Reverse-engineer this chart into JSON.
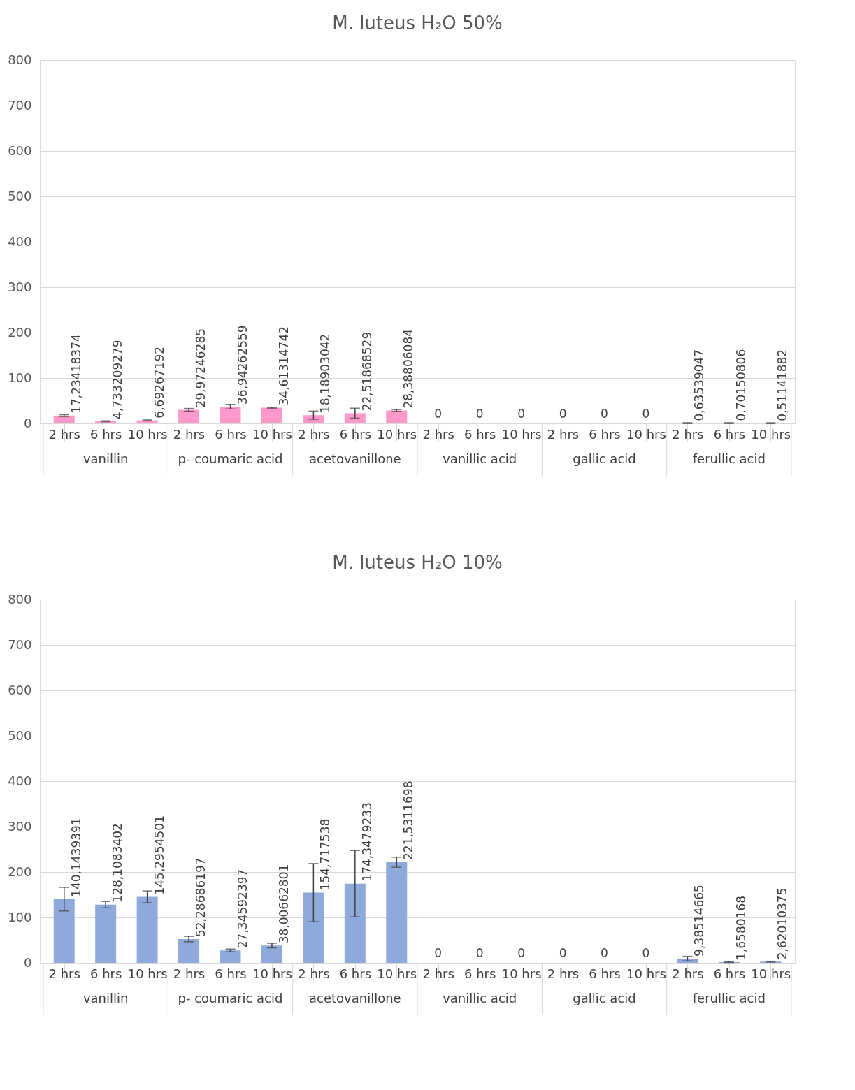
{
  "chart_data": [
    {
      "type": "bar",
      "title": "M. luteus H₂O 50%",
      "categories": [
        "2 hrs",
        "6 hrs",
        "10 hrs",
        "2 hrs",
        "6 hrs",
        "10 hrs",
        "2 hrs",
        "6 hrs",
        "10 hrs",
        "2 hrs",
        "6 hrs",
        "10 hrs",
        "2 hrs",
        "6 hrs",
        "10 hrs",
        "2 hrs",
        "6 hrs",
        "10 hrs"
      ],
      "annotations": [
        "vanillin",
        "p- coumaric acid",
        "acetovanillone",
        "vanillic acid",
        "gallic acid",
        "ferullic acid"
      ],
      "series": [
        {
          "color": "#ff99cc",
          "values": [
            17.23418374,
            4.733209279,
            6.69267192,
            29.97246285,
            36.94262559,
            34.61314742,
            18.18903042,
            22.51868529,
            28.38806084,
            0,
            0,
            0,
            0,
            0,
            0,
            0.63539047,
            0.70150806,
            0.51141882
          ],
          "errors": [
            2,
            1,
            1,
            3,
            5,
            1,
            9,
            11,
            2,
            null,
            null,
            null,
            null,
            null,
            null,
            1,
            1,
            1
          ],
          "value_labels": [
            "17,23418374",
            "4,733209279",
            "6,69267192",
            "29,97246285",
            "36,94262559",
            "34,61314742",
            "18,18903042",
            "22,51868529",
            "28,38806084",
            "0",
            "0",
            "0",
            "0",
            "0",
            "0",
            "0,63539047",
            "0,70150806",
            "0,51141882"
          ]
        }
      ],
      "ylim": [
        0,
        800
      ],
      "yticks": [
        0,
        100,
        200,
        300,
        400,
        500,
        600,
        700,
        800
      ],
      "grid": "y"
    },
    {
      "type": "bar",
      "title": "M. luteus H₂O 10%",
      "categories": [
        "2 hrs",
        "6 hrs",
        "10 hrs",
        "2 hrs",
        "6 hrs",
        "10 hrs",
        "2 hrs",
        "6 hrs",
        "10 hrs",
        "2 hrs",
        "6 hrs",
        "10 hrs",
        "2 hrs",
        "6 hrs",
        "10 hrs",
        "2 hrs",
        "6 hrs",
        "10 hrs"
      ],
      "annotations": [
        "vanillin",
        "p- coumaric acid",
        "acetovanillone",
        "vanillic acid",
        "gallic acid",
        "ferullic acid"
      ],
      "series": [
        {
          "color": "#8eaadb",
          "values": [
            140.1439391,
            128.1083402,
            145.2954501,
            52.28686197,
            27.34592397,
            38.00662801,
            154.717538,
            174.3479233,
            221.5311698,
            0,
            0,
            0,
            0,
            0,
            0,
            9.38514665,
            1.6580168,
            2.62010375
          ],
          "errors": [
            26,
            7,
            13,
            6,
            3,
            5,
            64,
            73,
            11,
            null,
            null,
            null,
            null,
            null,
            null,
            5,
            1,
            1
          ],
          "value_labels": [
            "140,1439391",
            "128,1083402",
            "145,2954501",
            "52,28686197",
            "27,34592397",
            "38,00662801",
            "154,717538",
            "174,3479233",
            "221,5311698",
            "0",
            "0",
            "0",
            "0",
            "0",
            "0",
            "9,38514665",
            "1,6580168",
            "2,62010375"
          ]
        }
      ],
      "ylim": [
        0,
        800
      ],
      "yticks": [
        0,
        100,
        200,
        300,
        400,
        500,
        600,
        700,
        800
      ],
      "grid": "y"
    }
  ]
}
